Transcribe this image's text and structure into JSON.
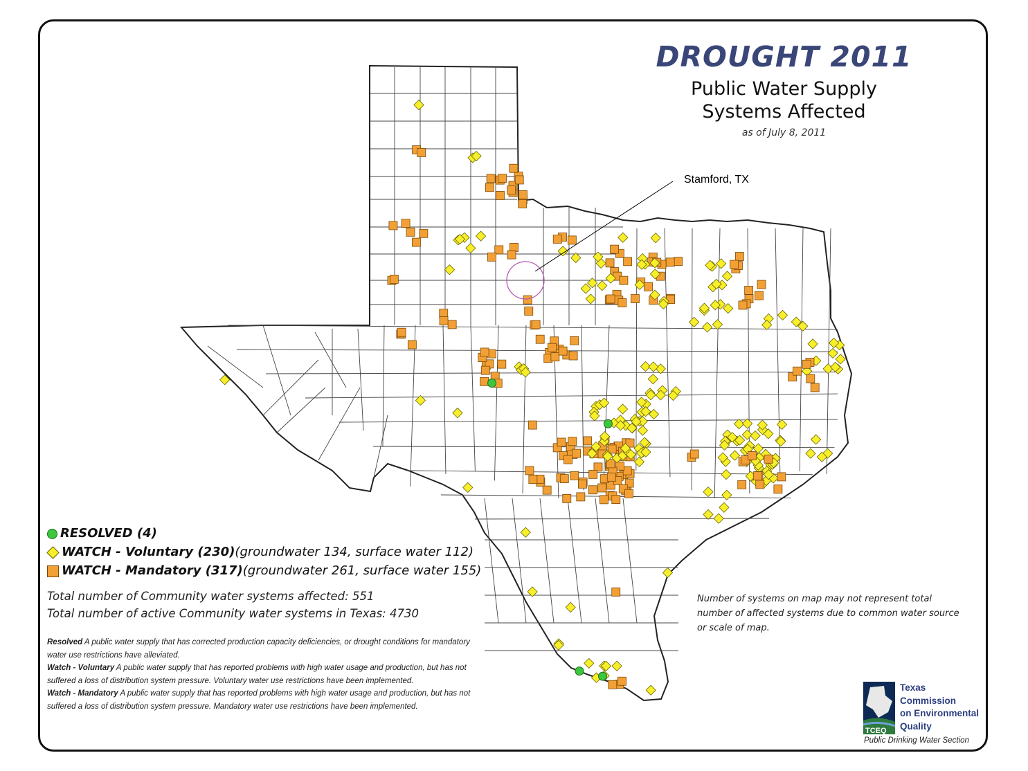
{
  "title": "DROUGHT 2011",
  "subtitle": "Public Water Supply\nSystems Affected",
  "as_of": "as of July 8, 2011",
  "callout": {
    "label": "Stamford, TX"
  },
  "legend": {
    "resolved": {
      "label": "RESOLVED (4)",
      "note": "",
      "color": "#3cc73c",
      "icon": "green-circle"
    },
    "voluntary": {
      "label": "WATCH - Voluntary (230)",
      "note": "(groundwater 134, surface water 112)",
      "color": "#f7ef2a",
      "icon": "yellow-diamond"
    },
    "mandatory": {
      "label": "WATCH - Mandatory (317)",
      "note": "(groundwater 261, surface water 155)",
      "color": "#f2a035",
      "icon": "orange-square"
    }
  },
  "totals": {
    "affected": "Total number of Community water systems affected:  551",
    "active": "Total number of active Community water systems in Texas:  4730"
  },
  "definitions": [
    {
      "term": "Resolved",
      "text": "  A public water supply that has corrected production capacity deficiencies, or drought conditions for mandatory water use restrictions have alleviated."
    },
    {
      "term": "Watch - Voluntary",
      "text": "  A public water supply that has reported problems with high water usage and production, but has not suffered a loss of distribution system pressure.  Voluntary water use restrictions have been implemented."
    },
    {
      "term": "Watch - Mandatory",
      "text": "  A public water supply that has reported problems with high water usage and production, but has not suffered a loss of distribution system pressure.  Mandatory water use restrictions have been implemented."
    }
  ],
  "map_note": "Number of systems on map may not represent total number of affected systems due to common water source or scale of map.",
  "agency": {
    "logo_text": "TCEQ",
    "name_lines": [
      "Texas",
      "Commission",
      "on Environmental",
      "Quality"
    ],
    "section": "Public Drinking Water Section"
  }
}
